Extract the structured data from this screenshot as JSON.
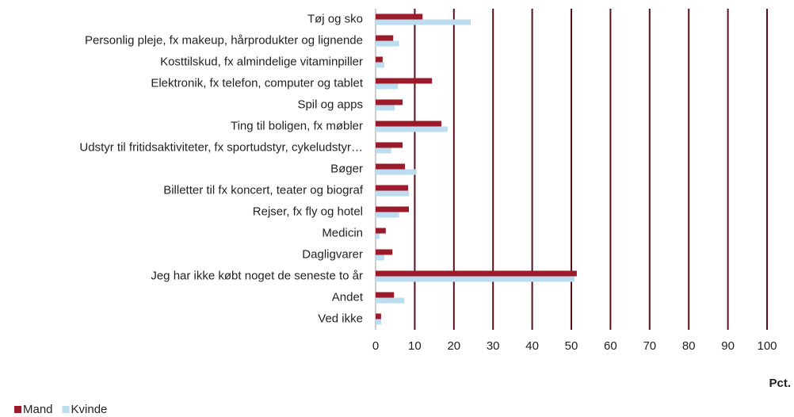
{
  "chart_data": {
    "type": "hbar",
    "categories": [
      "Tøj og sko",
      "Personlig pleje, fx makeup, hårprodukter og lignende",
      "Kosttilskud, fx almindelige vitaminpiller",
      "Elektronik, fx telefon, computer og tablet",
      "Spil og apps",
      "Ting til boligen, fx møbler",
      "Udstyr til fritidsaktiviteter, fx sportudstyr, cykeludstyr…",
      "Bøger",
      "Billetter til fx koncert, teater og biograf",
      "Rejser, fx fly og hotel",
      "Medicin",
      "Dagligvarer",
      "Jeg har ikke købt noget de seneste to år",
      "Andet",
      "Ved ikke"
    ],
    "series": [
      {
        "name": "Mand",
        "color": "#9b1b2a",
        "values": [
          12,
          4.5,
          1.8,
          14.4,
          6.9,
          16.8,
          6.9,
          7.5,
          8.3,
          8.5,
          2.6,
          4.3,
          51.4,
          4.7,
          1.4
        ]
      },
      {
        "name": "Kvinde",
        "color": "#bcdcf0",
        "values": [
          24.3,
          6,
          2.2,
          5.7,
          4.9,
          18.4,
          4,
          10.5,
          8.5,
          6,
          1,
          2.2,
          50.8,
          7.3,
          1.4
        ]
      }
    ],
    "xlabel": "Pct.",
    "xlim": [
      0,
      100
    ],
    "xticks": [
      0,
      10,
      20,
      30,
      40,
      50,
      60,
      70,
      80,
      90,
      100
    ],
    "grid": true,
    "grid_color": "#5c0f18",
    "legend": "bottom-left"
  }
}
